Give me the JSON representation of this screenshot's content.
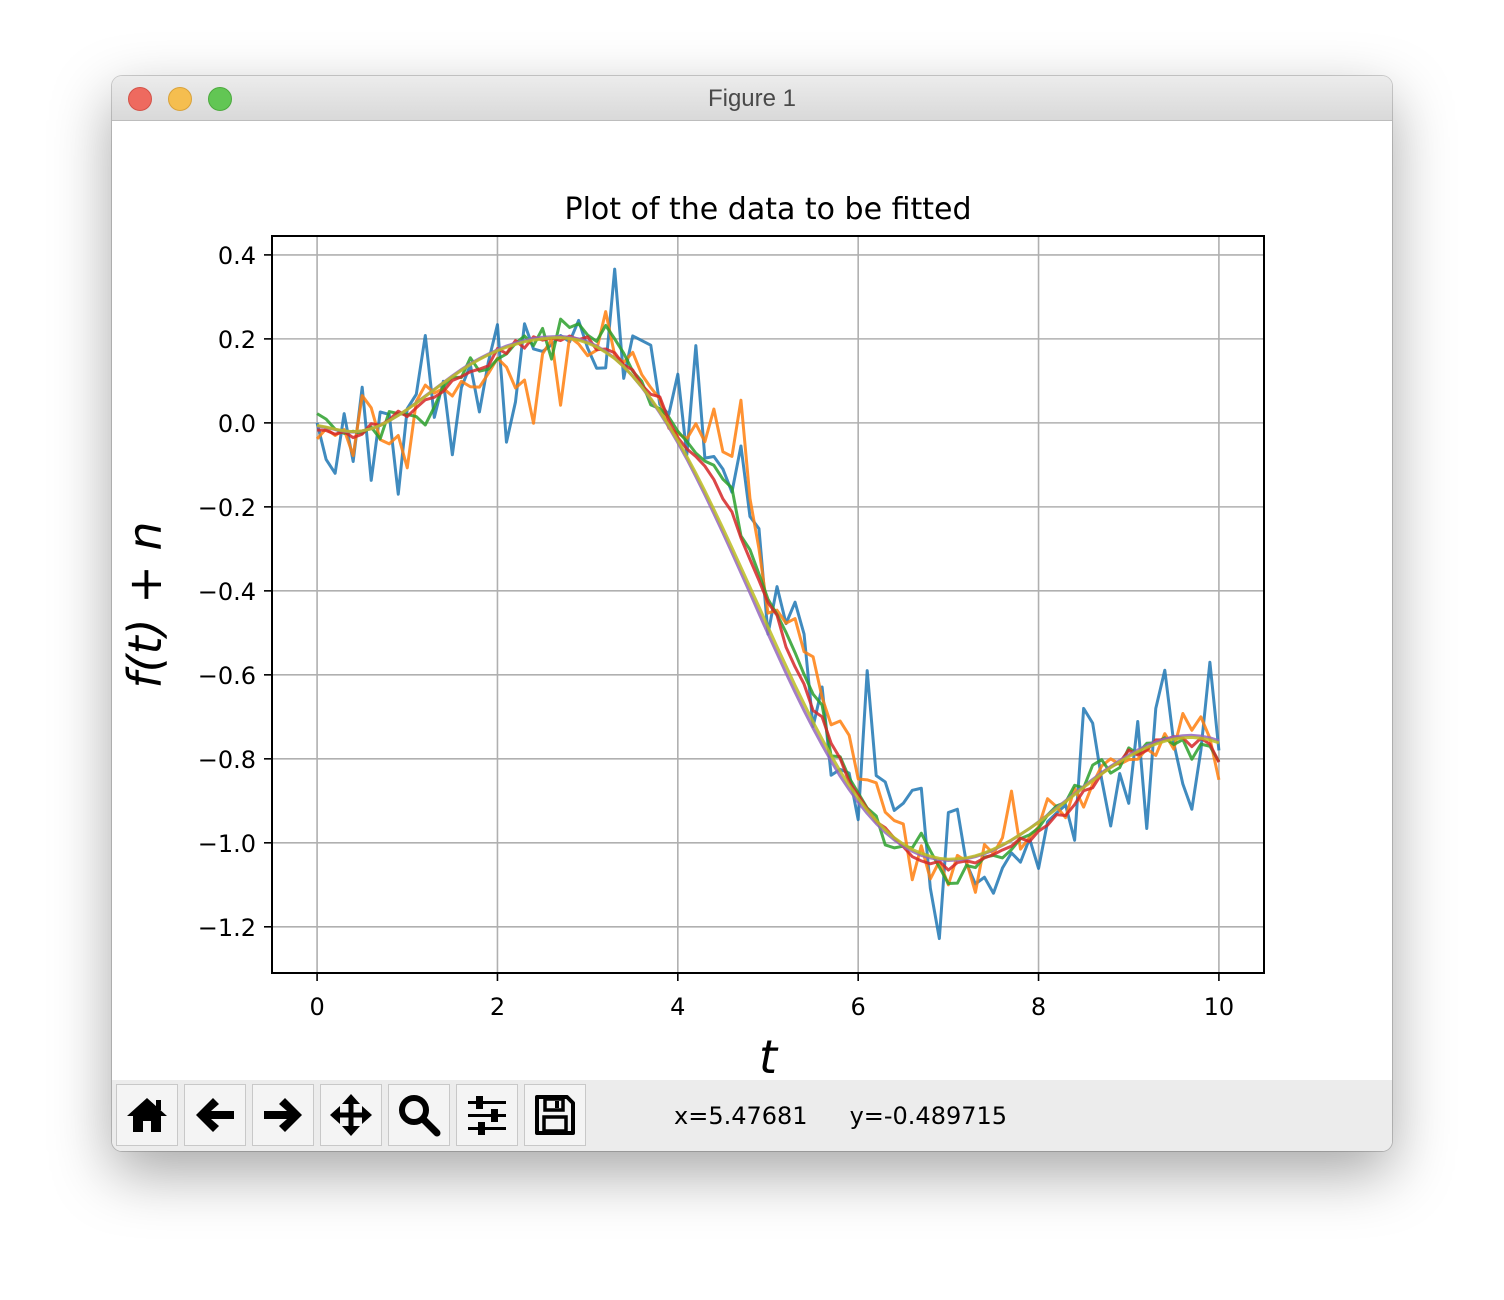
{
  "window": {
    "title": "Figure 1"
  },
  "chart_data": {
    "type": "line",
    "title": "Plot of the data to be fitted",
    "xlabel": "t",
    "ylabel": "f(t) + n",
    "xlim": [
      -0.5,
      10.5
    ],
    "ylim": [
      -1.31,
      0.445
    ],
    "xticks": [
      0,
      2,
      4,
      6,
      8,
      10
    ],
    "xtick_labels": [
      "0",
      "2",
      "4",
      "6",
      "8",
      "10"
    ],
    "yticks": [
      0.4,
      0.2,
      0.0,
      -0.2,
      -0.4,
      -0.6,
      -0.8,
      -1.0,
      -1.2
    ],
    "ytick_labels": [
      "0.4",
      "0.2",
      "0.0",
      "−0.2",
      "−0.4",
      "−0.6",
      "−0.8",
      "−1.0",
      "−1.2"
    ],
    "grid": true,
    "x": [
      0.0,
      0.1,
      0.2,
      0.3,
      0.4,
      0.5,
      0.6,
      0.7,
      0.8,
      0.9,
      1.0,
      1.1,
      1.2,
      1.3,
      1.4,
      1.5,
      1.6,
      1.7,
      1.8,
      1.9,
      2.0,
      2.1,
      2.2,
      2.3,
      2.4,
      2.5,
      2.6,
      2.7,
      2.8,
      2.9,
      3.0,
      3.1,
      3.2,
      3.3,
      3.4,
      3.5,
      3.6,
      3.7,
      3.8,
      3.9,
      4.0,
      4.1,
      4.2,
      4.3,
      4.4,
      4.5,
      4.6,
      4.7,
      4.8,
      4.9,
      5.0,
      5.1,
      5.2,
      5.3,
      5.4,
      5.5,
      5.6,
      5.7,
      5.8,
      5.9,
      6.0,
      6.1,
      6.2,
      6.3,
      6.4,
      6.5,
      6.6,
      6.7,
      6.8,
      6.9,
      7.0,
      7.1,
      7.2,
      7.3,
      7.4,
      7.5,
      7.6,
      7.7,
      7.8,
      7.9,
      8.0,
      8.1,
      8.2,
      8.3,
      8.4,
      8.5,
      8.6,
      8.7,
      8.8,
      8.9,
      9.0,
      9.1,
      9.2,
      9.3,
      9.4,
      9.5,
      9.6,
      9.7,
      9.8,
      9.9,
      10.0
    ],
    "series": [
      {
        "color": "#1f77b4",
        "alpha": 0.85,
        "values": [
          0.0,
          -0.087,
          -0.12,
          0.022,
          -0.092,
          0.085,
          -0.137,
          0.026,
          0.02,
          -0.17,
          0.034,
          0.068,
          0.208,
          0.013,
          0.099,
          -0.076,
          0.084,
          0.138,
          0.026,
          0.146,
          0.234,
          -0.046,
          0.05,
          0.236,
          0.176,
          0.17,
          0.186,
          0.208,
          0.193,
          0.244,
          0.178,
          0.13,
          0.131,
          0.366,
          0.106,
          0.207,
          0.196,
          0.185,
          0.044,
          0.02,
          0.116,
          -0.076,
          0.184,
          -0.084,
          -0.08,
          -0.11,
          -0.165,
          -0.055,
          -0.223,
          -0.252,
          -0.503,
          -0.39,
          -0.478,
          -0.427,
          -0.503,
          -0.723,
          -0.629,
          -0.839,
          -0.825,
          -0.834,
          -0.945,
          -0.59,
          -0.84,
          -0.855,
          -0.923,
          -0.906,
          -0.875,
          -0.87,
          -1.108,
          -1.228,
          -0.928,
          -0.92,
          -1.049,
          -1.098,
          -1.082,
          -1.12,
          -1.06,
          -1.024,
          -1.046,
          -0.99,
          -1.061,
          -0.95,
          -0.929,
          -0.91,
          -0.994,
          -0.68,
          -0.715,
          -0.849,
          -0.96,
          -0.835,
          -0.906,
          -0.711,
          -0.966,
          -0.68,
          -0.589,
          -0.763,
          -0.86,
          -0.92,
          -0.78,
          -0.57,
          -0.78
        ]
      },
      {
        "color": "#ff7f0e",
        "alpha": 0.85,
        "values": [
          -0.038,
          -0.014,
          -0.03,
          -0.016,
          -0.078,
          0.065,
          0.036,
          -0.04,
          -0.05,
          -0.03,
          -0.107,
          0.051,
          0.09,
          0.071,
          0.082,
          0.064,
          0.099,
          0.086,
          0.085,
          0.118,
          0.154,
          0.133,
          0.083,
          0.102,
          -0.001,
          0.164,
          0.199,
          0.042,
          0.205,
          0.188,
          0.16,
          0.173,
          0.265,
          0.161,
          0.144,
          0.168,
          0.115,
          0.084,
          0.057,
          -0.013,
          -0.025,
          -0.038,
          -0.002,
          -0.045,
          0.033,
          -0.069,
          -0.08,
          0.054,
          -0.18,
          -0.3,
          -0.453,
          -0.446,
          -0.477,
          -0.466,
          -0.545,
          -0.557,
          -0.654,
          -0.719,
          -0.71,
          -0.744,
          -0.848,
          -0.85,
          -0.857,
          -0.927,
          -0.947,
          -0.955,
          -1.088,
          -1.007,
          -1.086,
          -1.044,
          -1.1,
          -1.03,
          -1.044,
          -1.118,
          -1.004,
          -1.026,
          -0.988,
          -0.877,
          -1.015,
          -0.987,
          -0.962,
          -0.895,
          -0.914,
          -0.94,
          -0.87,
          -0.915,
          -0.86,
          -0.817,
          -0.8,
          -0.813,
          -0.802,
          -0.801,
          -0.776,
          -0.792,
          -0.74,
          -0.777,
          -0.692,
          -0.732,
          -0.7,
          -0.751,
          -0.85
        ]
      },
      {
        "color": "#2ca02c",
        "alpha": 0.85,
        "values": [
          0.022,
          0.009,
          -0.015,
          -0.025,
          -0.02,
          -0.025,
          -0.01,
          -0.038,
          0.027,
          0.022,
          0.02,
          0.015,
          -0.005,
          0.038,
          0.087,
          0.109,
          0.108,
          0.155,
          0.123,
          0.128,
          0.152,
          0.164,
          0.189,
          0.207,
          0.184,
          0.225,
          0.152,
          0.247,
          0.227,
          0.236,
          0.209,
          0.194,
          0.232,
          0.2,
          0.166,
          0.123,
          0.099,
          0.043,
          0.034,
          0.014,
          -0.02,
          -0.044,
          -0.072,
          -0.091,
          -0.101,
          -0.134,
          -0.155,
          -0.269,
          -0.302,
          -0.36,
          -0.42,
          -0.456,
          -0.499,
          -0.547,
          -0.599,
          -0.646,
          -0.672,
          -0.793,
          -0.795,
          -0.845,
          -0.881,
          -0.917,
          -0.936,
          -1.005,
          -1.012,
          -1.008,
          -1.012,
          -0.977,
          -1.019,
          -1.058,
          -1.097,
          -1.096,
          -1.054,
          -1.059,
          -1.034,
          -1.03,
          -1.036,
          -1.016,
          -0.99,
          -0.981,
          -0.965,
          -0.934,
          -0.912,
          -0.904,
          -0.863,
          -0.869,
          -0.815,
          -0.802,
          -0.834,
          -0.821,
          -0.774,
          -0.788,
          -0.763,
          -0.762,
          -0.75,
          -0.766,
          -0.754,
          -0.801,
          -0.765,
          -0.77,
          -0.806
        ]
      },
      {
        "color": "#d62728",
        "alpha": 0.85,
        "values": [
          -0.017,
          -0.018,
          -0.027,
          -0.021,
          -0.035,
          -0.027,
          -0.002,
          -0.006,
          0.007,
          0.028,
          0.015,
          0.036,
          0.055,
          0.061,
          0.075,
          0.101,
          0.11,
          0.122,
          0.128,
          0.136,
          0.177,
          0.165,
          0.196,
          0.178,
          0.205,
          0.197,
          0.202,
          0.196,
          0.207,
          0.198,
          0.205,
          0.174,
          0.176,
          0.167,
          0.138,
          0.126,
          0.09,
          0.068,
          0.062,
          0.006,
          -0.035,
          -0.062,
          -0.08,
          -0.103,
          -0.135,
          -0.181,
          -0.212,
          -0.274,
          -0.325,
          -0.375,
          -0.428,
          -0.458,
          -0.534,
          -0.581,
          -0.622,
          -0.685,
          -0.7,
          -0.763,
          -0.799,
          -0.855,
          -0.886,
          -0.919,
          -0.95,
          -0.964,
          -0.989,
          -1.009,
          -1.033,
          -1.043,
          -1.05,
          -1.044,
          -1.065,
          -1.047,
          -1.043,
          -1.048,
          -1.036,
          -1.028,
          -1.017,
          -1.008,
          -0.989,
          -0.997,
          -0.972,
          -0.958,
          -0.933,
          -0.935,
          -0.909,
          -0.876,
          -0.869,
          -0.835,
          -0.819,
          -0.809,
          -0.779,
          -0.791,
          -0.78,
          -0.755,
          -0.755,
          -0.747,
          -0.75,
          -0.771,
          -0.751,
          -0.765,
          -0.808
        ]
      },
      {
        "color": "#9467bd",
        "alpha": 0.85,
        "values": [
          -0.008,
          -0.011,
          -0.016,
          -0.02,
          -0.022,
          -0.019,
          -0.014,
          -0.006,
          0.005,
          0.018,
          0.032,
          0.048,
          0.064,
          0.08,
          0.096,
          0.112,
          0.127,
          0.141,
          0.153,
          0.164,
          0.174,
          0.183,
          0.19,
          0.196,
          0.201,
          0.204,
          0.205,
          0.206,
          0.204,
          0.2,
          0.193,
          0.183,
          0.17,
          0.154,
          0.134,
          0.111,
          0.085,
          0.056,
          0.024,
          -0.01,
          -0.047,
          -0.086,
          -0.128,
          -0.171,
          -0.216,
          -0.262,
          -0.309,
          -0.357,
          -0.405,
          -0.454,
          -0.502,
          -0.549,
          -0.596,
          -0.641,
          -0.685,
          -0.727,
          -0.767,
          -0.805,
          -0.841,
          -0.873,
          -0.903,
          -0.93,
          -0.954,
          -0.975,
          -0.993,
          -1.008,
          -1.02,
          -1.03,
          -1.036,
          -1.04,
          -1.042,
          -1.041,
          -1.038,
          -1.033,
          -1.026,
          -1.017,
          -1.006,
          -0.994,
          -0.98,
          -0.966,
          -0.95,
          -0.934,
          -0.917,
          -0.9,
          -0.883,
          -0.866,
          -0.849,
          -0.833,
          -0.818,
          -0.804,
          -0.791,
          -0.779,
          -0.769,
          -0.76,
          -0.753,
          -0.748,
          -0.745,
          -0.744,
          -0.746,
          -0.75,
          -0.757
        ]
      },
      {
        "color": "#bcbd22",
        "alpha": 0.85,
        "values": [
          -0.006,
          -0.01,
          -0.015,
          -0.019,
          -0.021,
          -0.019,
          -0.014,
          -0.006,
          0.005,
          0.018,
          0.032,
          0.047,
          0.063,
          0.079,
          0.095,
          0.11,
          0.125,
          0.139,
          0.151,
          0.162,
          0.172,
          0.18,
          0.187,
          0.193,
          0.197,
          0.2,
          0.202,
          0.203,
          0.201,
          0.197,
          0.19,
          0.181,
          0.168,
          0.153,
          0.134,
          0.111,
          0.086,
          0.058,
          0.027,
          -0.006,
          -0.042,
          -0.08,
          -0.12,
          -0.162,
          -0.206,
          -0.251,
          -0.297,
          -0.344,
          -0.391,
          -0.438,
          -0.486,
          -0.533,
          -0.579,
          -0.625,
          -0.669,
          -0.712,
          -0.753,
          -0.792,
          -0.829,
          -0.863,
          -0.894,
          -0.922,
          -0.947,
          -0.969,
          -0.988,
          -1.003,
          -1.016,
          -1.025,
          -1.032,
          -1.037,
          -1.039,
          -1.038,
          -1.036,
          -1.031,
          -1.024,
          -1.015,
          -1.005,
          -0.993,
          -0.98,
          -0.966,
          -0.951,
          -0.935,
          -0.919,
          -0.902,
          -0.885,
          -0.868,
          -0.852,
          -0.836,
          -0.821,
          -0.807,
          -0.795,
          -0.783,
          -0.773,
          -0.765,
          -0.758,
          -0.753,
          -0.75,
          -0.749,
          -0.751,
          -0.755,
          -0.762
        ]
      }
    ]
  },
  "toolbar": {
    "buttons": [
      {
        "name": "home-button",
        "icon": "home-icon"
      },
      {
        "name": "back-button",
        "icon": "arrow-left-icon"
      },
      {
        "name": "forward-button",
        "icon": "arrow-right-icon"
      },
      {
        "name": "pan-button",
        "icon": "move-icon"
      },
      {
        "name": "zoom-button",
        "icon": "magnifier-icon"
      },
      {
        "name": "subplots-button",
        "icon": "sliders-icon"
      },
      {
        "name": "save-button",
        "icon": "floppy-disk-icon"
      }
    ],
    "x_readout": "x=5.47681",
    "y_readout": "y=-0.489715"
  }
}
